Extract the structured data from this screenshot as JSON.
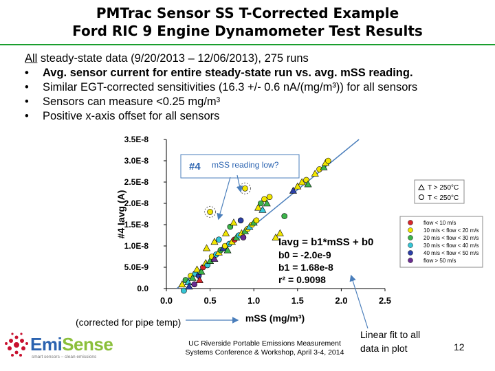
{
  "slide": {
    "title_line1": "PMTrac Sensor SS T-Corrected Example",
    "title_line2": "Ford RIC 9 Engine Dynamometer Test Results",
    "lead_underlined": "All",
    "lead_rest": " steady-state data (9/20/2013 – 12/06/2013), 275 runs",
    "bullets": [
      "Avg. sensor current for entire steady-state run vs. avg. mSS reading.",
      "Similar EGT-corrected sensitivities (16.3 +/- 0.6 nA/(mg/m³)) for all sensors",
      "Sensors can measure <0.25 mg/m³",
      "Positive x-axis offset for all sensors"
    ],
    "footer_line1": "UC Riverside Portable Emissions Measurement",
    "footer_line2": "Systems Conference & Workshop, April 3-4, 2014",
    "page_number": "12",
    "logo_main": "Emi",
    "logo_accent": "Sense",
    "logo_tagline": "smart sensors – clean emissions"
  },
  "chart_data": {
    "type": "scatter",
    "xlabel": "mSS (mg/m³)",
    "xlabel_note": "(corrected for pipe temp)",
    "ylabel": "#4 Iavg (A)",
    "xlim": [
      0,
      2.5
    ],
    "ylim": [
      0,
      3.5e-08
    ],
    "x_ticks": [
      "0.0",
      "0.5",
      "1.0",
      "1.5",
      "2.0",
      "2.5"
    ],
    "y_ticks": [
      "0.0",
      "5.0E-9",
      "1.0E-8",
      "1.5E-8",
      "2.0E-8",
      "2.5E-8",
      "3.0E-8",
      "3.5E-8"
    ],
    "grid": false,
    "sensor_badge": "#4",
    "callout_low": "mSS reading low?",
    "equation": "Iavg = b1*mSS + b0",
    "b0_text": "b0 = -2.0e-9",
    "b1_text": "b1 = 1.68e-8",
    "r2_text": "r² = 0.9098",
    "fit": {
      "b1": 1.68e-08,
      "b0": -2e-09
    },
    "fit_annotation": [
      "Linear fit to all",
      "data in plot"
    ],
    "legend_temp": [
      "T > 250°C",
      "T < 250°C"
    ],
    "legend_flow": [
      {
        "label": "flow < 10 m/s",
        "color": "#d9262b"
      },
      {
        "label": "10 m/s < flow < 20 m/s",
        "color": "#f2e600"
      },
      {
        "label": "20 m/s < flow < 30 m/s",
        "color": "#3cb44a"
      },
      {
        "label": "30 m/s < flow < 40 m/s",
        "color": "#35c6d6"
      },
      {
        "label": "40 m/s < flow < 50 m/s",
        "color": "#2b3fa8"
      },
      {
        "label": "flow > 50 m/s",
        "color": "#6a2c91"
      }
    ],
    "points": [
      {
        "x": 0.18,
        "y": 1e-09,
        "c": 1,
        "m": "t"
      },
      {
        "x": 0.22,
        "y": 2e-09,
        "c": 2,
        "m": "o"
      },
      {
        "x": 0.25,
        "y": 1.5e-09,
        "c": 3,
        "m": "t"
      },
      {
        "x": 0.28,
        "y": 3e-09,
        "c": 1,
        "m": "o"
      },
      {
        "x": 0.3,
        "y": 2.5e-09,
        "c": 2,
        "m": "t"
      },
      {
        "x": 0.33,
        "y": 3.5e-09,
        "c": 3,
        "m": "o"
      },
      {
        "x": 0.35,
        "y": 4.5e-09,
        "c": 1,
        "m": "t"
      },
      {
        "x": 0.37,
        "y": 3e-09,
        "c": 4,
        "m": "o"
      },
      {
        "x": 0.4,
        "y": 4e-09,
        "c": 2,
        "m": "t"
      },
      {
        "x": 0.42,
        "y": 5e-09,
        "c": 0,
        "m": "o"
      },
      {
        "x": 0.45,
        "y": 6e-09,
        "c": 1,
        "m": "t"
      },
      {
        "x": 0.47,
        "y": 5.5e-09,
        "c": 3,
        "m": "o"
      },
      {
        "x": 0.5,
        "y": 6.5e-09,
        "c": 2,
        "m": "t"
      },
      {
        "x": 0.52,
        "y": 7.5e-09,
        "c": 1,
        "m": "o"
      },
      {
        "x": 0.55,
        "y": 7e-09,
        "c": 5,
        "m": "t"
      },
      {
        "x": 0.57,
        "y": 8e-09,
        "c": 3,
        "m": "o"
      },
      {
        "x": 0.6,
        "y": 8.5e-09,
        "c": 1,
        "m": "t"
      },
      {
        "x": 0.62,
        "y": 9e-09,
        "c": 2,
        "m": "o"
      },
      {
        "x": 0.65,
        "y": 9.5e-09,
        "c": 4,
        "m": "t"
      },
      {
        "x": 0.67,
        "y": 1e-08,
        "c": 1,
        "m": "o"
      },
      {
        "x": 0.7,
        "y": 9e-09,
        "c": 2,
        "m": "t"
      },
      {
        "x": 0.72,
        "y": 1.05e-08,
        "c": 3,
        "m": "o"
      },
      {
        "x": 0.75,
        "y": 1.1e-08,
        "c": 1,
        "m": "t"
      },
      {
        "x": 0.78,
        "y": 1.15e-08,
        "c": 0,
        "m": "o"
      },
      {
        "x": 0.8,
        "y": 1.2e-08,
        "c": 2,
        "m": "t"
      },
      {
        "x": 0.83,
        "y": 1.25e-08,
        "c": 3,
        "m": "o"
      },
      {
        "x": 0.86,
        "y": 1.3e-08,
        "c": 1,
        "m": "t"
      },
      {
        "x": 0.88,
        "y": 1.2e-08,
        "c": 5,
        "m": "o"
      },
      {
        "x": 0.9,
        "y": 1.35e-08,
        "c": 2,
        "m": "t"
      },
      {
        "x": 0.93,
        "y": 1.4e-08,
        "c": 1,
        "m": "o"
      },
      {
        "x": 0.95,
        "y": 1.45e-08,
        "c": 3,
        "m": "t"
      },
      {
        "x": 0.98,
        "y": 1.5e-08,
        "c": 1,
        "m": "o"
      },
      {
        "x": 1.0,
        "y": 1.55e-08,
        "c": 2,
        "m": "t"
      },
      {
        "x": 1.03,
        "y": 1.6e-08,
        "c": 1,
        "m": "o"
      },
      {
        "x": 0.46,
        "y": 9.5e-09,
        "c": 1,
        "m": "t"
      },
      {
        "x": 0.55,
        "y": 1.1e-08,
        "c": 1,
        "m": "t"
      },
      {
        "x": 0.6,
        "y": 1.15e-08,
        "c": 3,
        "m": "o"
      },
      {
        "x": 0.68,
        "y": 1.3e-08,
        "c": 1,
        "m": "t"
      },
      {
        "x": 0.73,
        "y": 1.45e-08,
        "c": 2,
        "m": "o"
      },
      {
        "x": 0.77,
        "y": 1.55e-08,
        "c": 1,
        "m": "t"
      },
      {
        "x": 0.85,
        "y": 1.6e-08,
        "c": 4,
        "m": "o"
      },
      {
        "x": 0.2,
        "y": -5e-10,
        "c": 3,
        "m": "o"
      },
      {
        "x": 0.26,
        "y": 5e-10,
        "c": 4,
        "m": "t"
      },
      {
        "x": 0.32,
        "y": 1e-09,
        "c": 5,
        "m": "o"
      },
      {
        "x": 0.38,
        "y": 2e-09,
        "c": 0,
        "m": "t"
      },
      {
        "x": 1.05,
        "y": 1.9e-08,
        "c": 1,
        "m": "t"
      },
      {
        "x": 1.08,
        "y": 2e-08,
        "c": 2,
        "m": "o"
      },
      {
        "x": 1.1,
        "y": 1.85e-08,
        "c": 3,
        "m": "t"
      },
      {
        "x": 1.12,
        "y": 2.1e-08,
        "c": 1,
        "m": "o"
      },
      {
        "x": 1.15,
        "y": 2e-08,
        "c": 2,
        "m": "t"
      },
      {
        "x": 1.18,
        "y": 2.15e-08,
        "c": 1,
        "m": "o"
      },
      {
        "x": 1.25,
        "y": 1.2e-08,
        "c": 1,
        "m": "t"
      },
      {
        "x": 1.3,
        "y": 1.3e-08,
        "c": 1,
        "m": "t"
      },
      {
        "x": 1.35,
        "y": 1.7e-08,
        "c": 2,
        "m": "o"
      },
      {
        "x": 1.55,
        "y": 2.5e-08,
        "c": 1,
        "m": "t"
      },
      {
        "x": 1.6,
        "y": 2.55e-08,
        "c": 1,
        "m": "o"
      },
      {
        "x": 1.62,
        "y": 2.45e-08,
        "c": 2,
        "m": "t"
      },
      {
        "x": 1.7,
        "y": 2.7e-08,
        "c": 1,
        "m": "t"
      },
      {
        "x": 1.75,
        "y": 2.8e-08,
        "c": 1,
        "m": "o"
      },
      {
        "x": 1.8,
        "y": 2.85e-08,
        "c": 2,
        "m": "t"
      },
      {
        "x": 1.82,
        "y": 2.95e-08,
        "c": 1,
        "m": "t"
      },
      {
        "x": 1.85,
        "y": 3e-08,
        "c": 1,
        "m": "o"
      },
      {
        "x": 1.45,
        "y": 2.3e-08,
        "c": 4,
        "m": "t"
      },
      {
        "x": 1.5,
        "y": 2.4e-08,
        "c": 1,
        "m": "t"
      },
      {
        "x": 0.5,
        "y": 1.8e-08,
        "c": 1,
        "m": "o"
      },
      {
        "x": 0.9,
        "y": 2.35e-08,
        "c": 1,
        "m": "o"
      }
    ],
    "circled_points": [
      {
        "x": 0.5,
        "y": 1.8e-08
      },
      {
        "x": 0.9,
        "y": 2.35e-08
      }
    ]
  }
}
